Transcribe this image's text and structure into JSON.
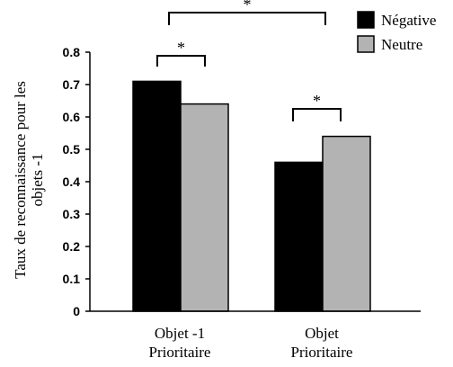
{
  "chart_data": {
    "type": "bar",
    "categories": [
      "Objet -1 Prioritaire",
      "Objet Prioritaire"
    ],
    "category_lines": [
      [
        "Objet -1",
        "Prioritaire"
      ],
      [
        "Objet",
        "Prioritaire"
      ]
    ],
    "series": [
      {
        "name": "Négative",
        "values": [
          0.71,
          0.46
        ],
        "color": "#000000"
      },
      {
        "name": "Neutre",
        "values": [
          0.64,
          0.54
        ],
        "color": "#b3b3b3"
      }
    ],
    "ylabel_lines": [
      "Taux de reconnaissance pour les",
      "objets -1"
    ],
    "xlabel": "",
    "ylim": [
      0,
      0.8
    ],
    "yticks": [
      "0",
      "0.1",
      "0.2",
      "0.3",
      "0.4",
      "0.5",
      "0.6",
      "0.7",
      "0.8"
    ],
    "grid": false,
    "legend_position": "top-right",
    "significance": [
      {
        "between": "Négative vs Neutre, Objet -1 Prioritaire",
        "label": "*"
      },
      {
        "between": "Négative vs Neutre, Objet Prioritaire",
        "label": "*"
      },
      {
        "between": "Négative, Objet -1 Prioritaire vs Objet Prioritaire",
        "label": "*"
      }
    ]
  }
}
